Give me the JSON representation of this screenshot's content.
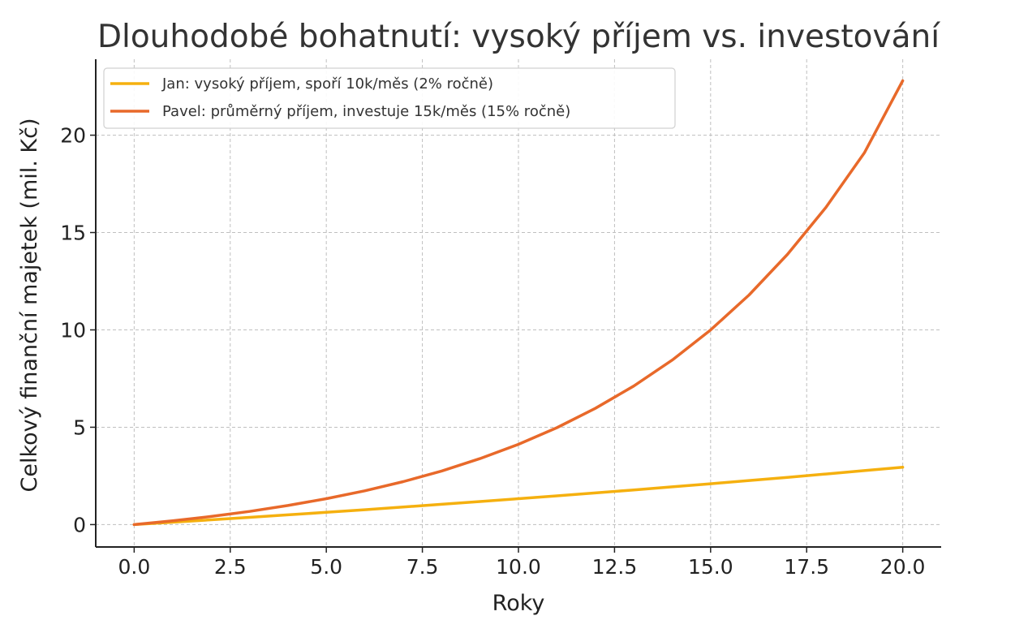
{
  "chart_data": {
    "type": "line",
    "title": "Dlouhodobé bohatnutí: vysoký příjem vs. investování",
    "xlabel": "Roky",
    "ylabel": "Celkový finanční majetek (mil. Kč)",
    "xlim": [
      -1,
      21
    ],
    "ylim": [
      -1.15,
      23.9
    ],
    "xticks": [
      0,
      2.5,
      5,
      7.5,
      10,
      12.5,
      15,
      17.5,
      20
    ],
    "xtick_labels": [
      "0.0",
      "2.5",
      "5.0",
      "7.5",
      "10.0",
      "12.5",
      "15.0",
      "17.5",
      "20.0"
    ],
    "yticks": [
      0,
      5,
      10,
      15,
      20
    ],
    "ytick_labels": [
      "0",
      "5",
      "10",
      "15",
      "20"
    ],
    "grid": true,
    "legend_position": "top-left",
    "series": [
      {
        "name": "Jan: vysoký příjem, spoří 10k/měs (2% ročně)",
        "color": "#f5b00f",
        "x": [
          0,
          1,
          2,
          3,
          4,
          5,
          6,
          7,
          8,
          9,
          10,
          11,
          12,
          13,
          14,
          15,
          16,
          17,
          18,
          19,
          20
        ],
        "y": [
          0,
          0.121,
          0.245,
          0.371,
          0.5,
          0.631,
          0.765,
          0.902,
          1.041,
          1.183,
          1.328,
          1.476,
          1.627,
          1.781,
          1.938,
          2.098,
          2.262,
          2.428,
          2.598,
          2.771,
          2.948
        ]
      },
      {
        "name": "Pavel: průměrný příjem, investuje 15k/měs (15% ročně)",
        "color": "#e8692a",
        "x": [
          0,
          1,
          2,
          3,
          4,
          5,
          6,
          7,
          8,
          9,
          10,
          11,
          12,
          13,
          14,
          15,
          16,
          17,
          18,
          19,
          20
        ],
        "y": [
          0,
          0.193,
          0.417,
          0.677,
          0.979,
          1.329,
          1.735,
          2.206,
          2.753,
          3.388,
          4.124,
          4.978,
          5.968,
          7.117,
          8.45,
          9.997,
          11.792,
          13.874,
          16.289,
          19.091,
          22.797
        ]
      }
    ]
  }
}
